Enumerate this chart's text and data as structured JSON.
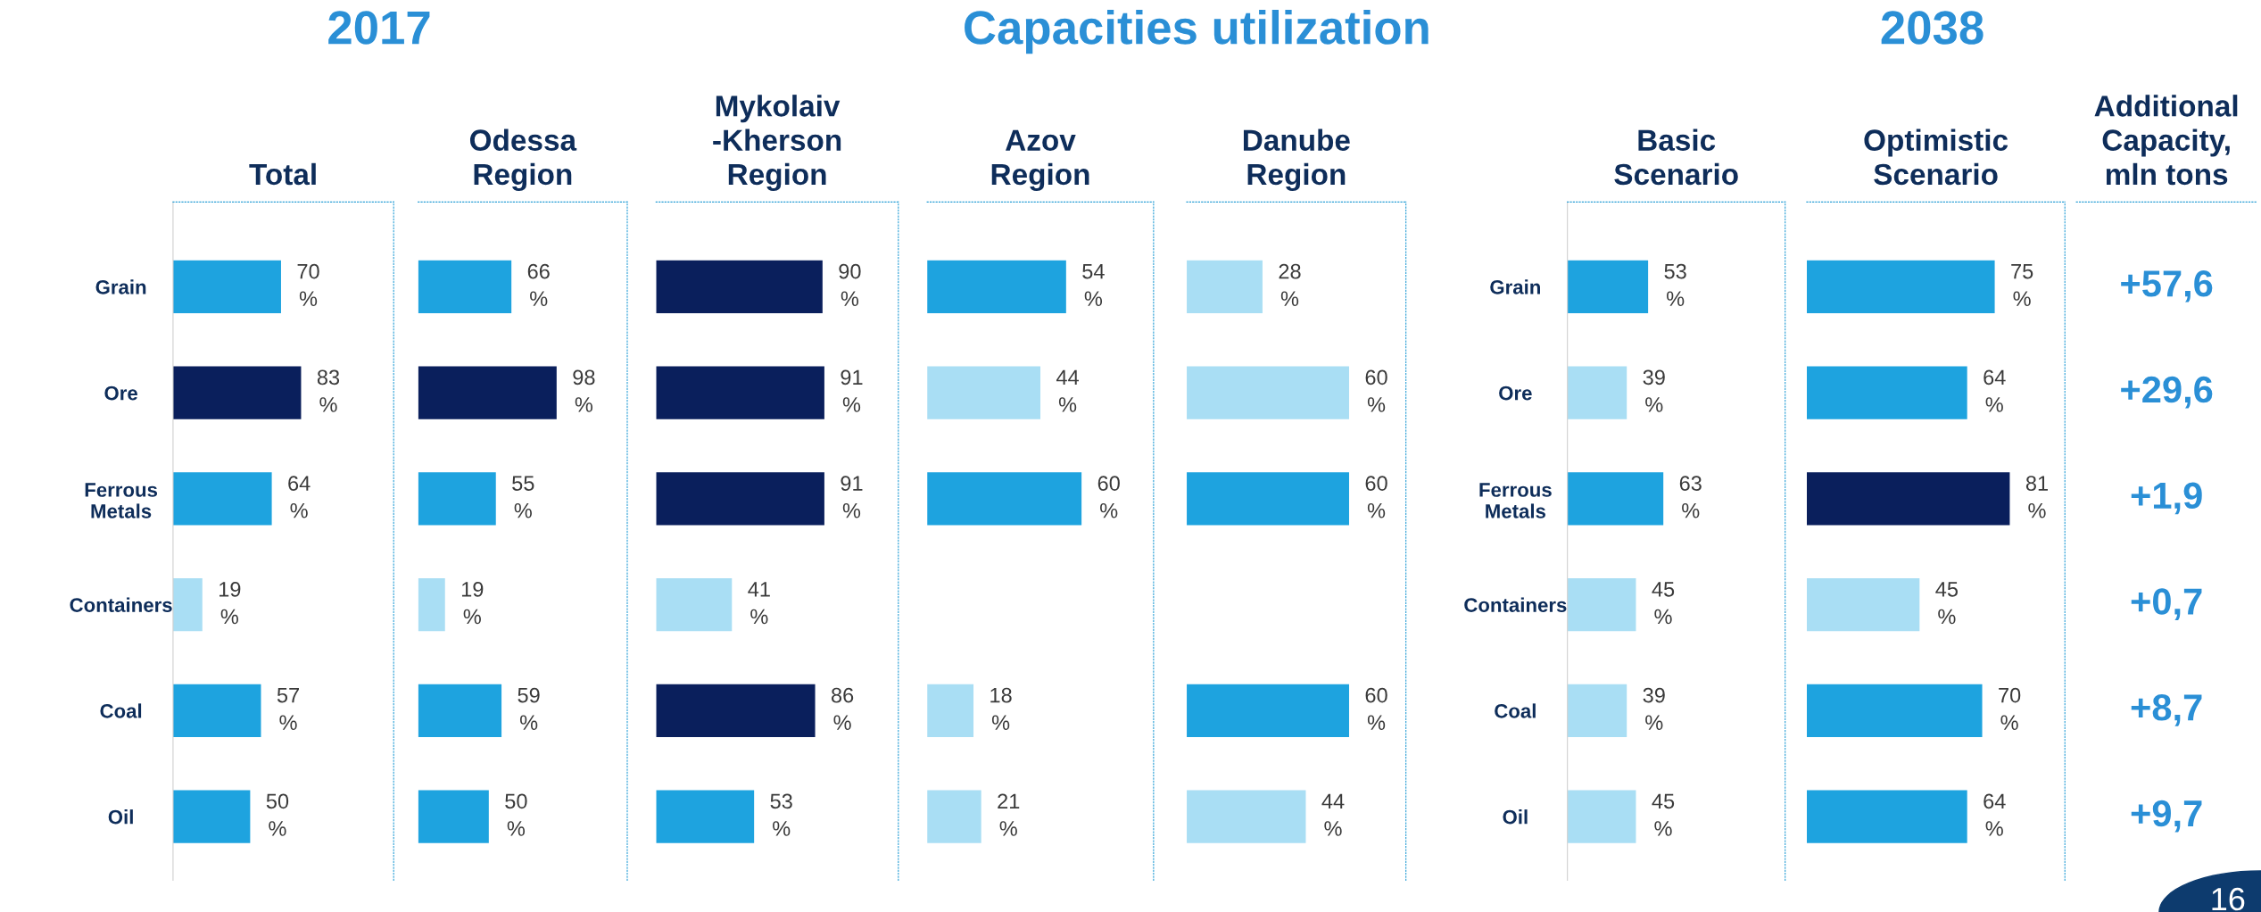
{
  "chart_data": [
    {
      "type": "bar",
      "orientation": "horizontal",
      "title": "Total",
      "categories": [
        "Grain",
        "Ore",
        "Ferrous\nMetals",
        "Containers",
        "Coal",
        "Oil"
      ],
      "values": [
        70,
        83,
        64,
        19,
        57,
        50
      ],
      "colors": [
        "#1ea3df",
        "#0a1f5c",
        "#1ea3df",
        "#a9def4",
        "#1ea3df",
        "#1ea3df"
      ],
      "value_labels": [
        "70\n%",
        "83\n%",
        "64\n%",
        "19\n%",
        "57\n%",
        "50\n%"
      ],
      "xlim": [
        0,
        143
      ],
      "annotations": [
        "2017",
        "Capacities utilization",
        "2038",
        "16"
      ]
    },
    {
      "type": "bar",
      "orientation": "horizontal",
      "title": "Odessa\nRegion",
      "categories": [
        null,
        null,
        null,
        null,
        null,
        null
      ],
      "values": [
        66,
        98,
        55,
        19,
        59,
        50
      ],
      "colors": [
        "#1ea3df",
        "#0a1f5c",
        "#1ea3df",
        "#a9def4",
        "#1ea3df",
        "#1ea3df"
      ],
      "value_labels": [
        "66\n%",
        "98\n%",
        "55\n%",
        "19\n%",
        "59\n%",
        "50\n%"
      ],
      "xlim": [
        0,
        148
      ],
      "tick_labels": false
    },
    {
      "type": "bar",
      "orientation": "horizontal",
      "title": "Mykolaiv\n-Kherson\nRegion",
      "categories": [
        null,
        null,
        null,
        null,
        null,
        null
      ],
      "values": [
        90,
        91,
        91,
        41,
        86,
        53
      ],
      "colors": [
        "#0a1f5c",
        "#0a1f5c",
        "#0a1f5c",
        "#a9def4",
        "#0a1f5c",
        "#1ea3df"
      ],
      "value_labels": [
        "90\n%",
        "91\n%",
        "91\n%",
        "41\n%",
        "86\n%",
        "53\n%"
      ],
      "xlim": [
        0,
        131
      ],
      "tick_labels": false
    },
    {
      "type": "bar",
      "orientation": "horizontal",
      "title": "Azov\nRegion",
      "categories": [
        null,
        null,
        null,
        null,
        null,
        null
      ],
      "values": [
        54,
        44,
        60,
        null,
        18,
        21
      ],
      "colors": [
        "#1ea3df",
        "#a9def4",
        "#1ea3df",
        "#a9def4",
        "#a9def4",
        "#a9def4"
      ],
      "value_labels": [
        "54\n%",
        "44\n%",
        "60\n%",
        null,
        "18\n%",
        "21\n%"
      ],
      "xlim": [
        0,
        88
      ],
      "tick_labels": false
    },
    {
      "type": "bar",
      "orientation": "horizontal",
      "title": "Danube\nRegion",
      "categories": [
        null,
        null,
        null,
        null,
        null,
        null
      ],
      "values": [
        28,
        60,
        60,
        null,
        60,
        44
      ],
      "colors": [
        "#a9def4",
        "#a9def4",
        "#1ea3df",
        "#a9def4",
        "#1ea3df",
        "#a9def4"
      ],
      "value_labels": [
        "28\n%",
        "60\n%",
        "60\n%",
        null,
        "60\n%",
        "44\n%"
      ],
      "xlim": [
        0,
        81
      ],
      "tick_labels": false
    },
    {
      "type": "bar",
      "orientation": "horizontal",
      "title": "Basic\nScenario",
      "categories": [
        "Grain",
        "Ore",
        "Ferrous\nMetals",
        "Containers",
        "Coal",
        "Oil"
      ],
      "values": [
        53,
        39,
        63,
        45,
        39,
        45
      ],
      "colors": [
        "#1ea3df",
        "#a9def4",
        "#1ea3df",
        "#a9def4",
        "#a9def4",
        "#a9def4"
      ],
      "value_labels": [
        "53\n%",
        "39\n%",
        "63\n%",
        "45\n%",
        "39\n%",
        "45\n%"
      ],
      "xlim": [
        0,
        143
      ]
    },
    {
      "type": "bar",
      "orientation": "horizontal",
      "title": "Optimistic\nScenario",
      "categories": [
        null,
        null,
        null,
        null,
        null,
        null
      ],
      "values": [
        75,
        64,
        81,
        45,
        70,
        64
      ],
      "colors": [
        "#1ea3df",
        "#1ea3df",
        "#0a1f5c",
        "#a9def4",
        "#1ea3df",
        "#1ea3df"
      ],
      "value_labels": [
        "75\n%",
        "64\n%",
        "81\n%",
        "45\n%",
        "70\n%",
        "64\n%"
      ],
      "xlim": [
        0,
        103
      ],
      "tick_labels": false
    },
    {
      "type": "other",
      "title": "Additional\nCapacity,\nmln tons",
      "annotations": [
        "+57,6",
        "+29,6",
        "+1,9",
        "+0,7",
        "+8,7",
        "+9,7"
      ]
    }
  ]
}
